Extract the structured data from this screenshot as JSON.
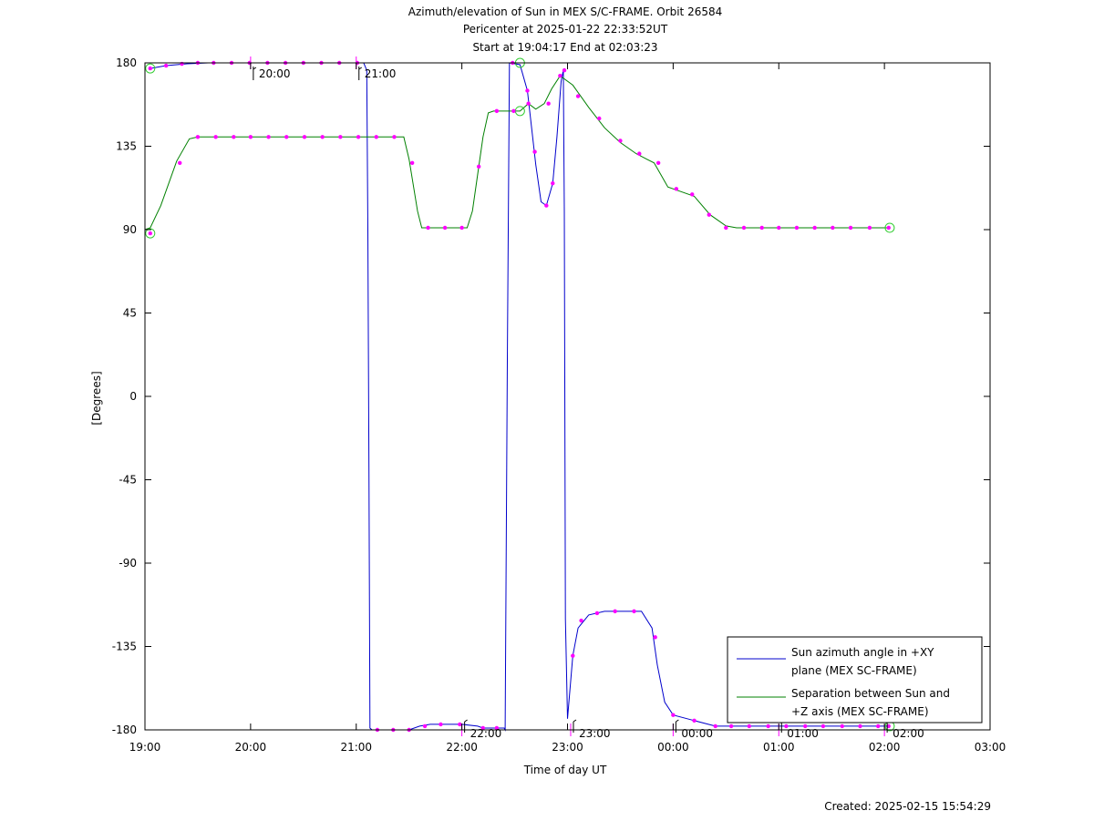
{
  "chart_data": {
    "type": "line",
    "title": "Azimuth/elevation of Sun in MEX S/C-FRAME.  Orbit 26584",
    "subtitle_1": "Pericenter at 2025-01-22 22:33:52UT",
    "subtitle_2": "Start at 19:04:17 End at 02:03:23",
    "xlabel": "Time of day UT",
    "ylabel": "[Degrees]",
    "footer": "Created: 2025-02-15 15:54:29",
    "xlim": [
      19.0,
      27.0
    ],
    "ylim": [
      -180,
      180
    ],
    "x_ticks": [
      {
        "v": 19,
        "label": "19:00"
      },
      {
        "v": 20,
        "label": "20:00"
      },
      {
        "v": 21,
        "label": "21:00"
      },
      {
        "v": 22,
        "label": "22:00"
      },
      {
        "v": 23,
        "label": "23:00"
      },
      {
        "v": 24,
        "label": "00:00"
      },
      {
        "v": 25,
        "label": "01:00"
      },
      {
        "v": 26,
        "label": "02:00"
      },
      {
        "v": 27,
        "label": "03:00"
      }
    ],
    "y_ticks": [
      {
        "v": 180,
        "label": "180"
      },
      {
        "v": 135,
        "label": "135"
      },
      {
        "v": 90,
        "label": "90"
      },
      {
        "v": 45,
        "label": "45"
      },
      {
        "v": 0,
        "label": "0"
      },
      {
        "v": -45,
        "label": "-45"
      },
      {
        "v": -90,
        "label": "-90"
      },
      {
        "v": -135,
        "label": "-135"
      },
      {
        "v": -180,
        "label": "-180"
      }
    ],
    "hour_marks": [
      {
        "x": 20.0,
        "y": 180,
        "label": "20:00"
      },
      {
        "x": 21.0,
        "y": 180,
        "label": "21:00"
      },
      {
        "x": 22.0,
        "y": -180,
        "label": "22:00"
      },
      {
        "x": 23.03,
        "y": -180,
        "label": "23:00"
      },
      {
        "x": 24.0,
        "y": -180,
        "label": "00:00"
      },
      {
        "x": 25.0,
        "y": -180,
        "label": "01:00"
      },
      {
        "x": 26.0,
        "y": -180,
        "label": "02:00"
      }
    ],
    "series": [
      {
        "name": "Sun azimuth angle in +XY plane (MEX SC-FRAME)",
        "legend_lines": [
          "Sun azimuth angle in +XY",
          "plane (MEX SC-FRAME)"
        ],
        "color": "#0000cc",
        "points": [
          [
            19.05,
            177
          ],
          [
            19.2,
            178.5
          ],
          [
            19.4,
            179.5
          ],
          [
            19.6,
            180
          ],
          [
            21.07,
            180
          ],
          [
            21.1,
            176
          ],
          [
            21.11,
            90
          ],
          [
            21.12,
            -40
          ],
          [
            21.13,
            -179
          ],
          [
            21.15,
            -180
          ],
          [
            21.5,
            -180
          ],
          [
            21.6,
            -178
          ],
          [
            21.7,
            -177
          ],
          [
            22.0,
            -177
          ],
          [
            22.15,
            -178
          ],
          [
            22.2,
            -179
          ],
          [
            22.4,
            -179
          ],
          [
            22.41,
            -180
          ],
          [
            22.43,
            20
          ],
          [
            22.45,
            180
          ],
          [
            22.55,
            179
          ],
          [
            22.62,
            165
          ],
          [
            22.7,
            125
          ],
          [
            22.75,
            105
          ],
          [
            22.8,
            103
          ],
          [
            22.86,
            115
          ],
          [
            22.9,
            140
          ],
          [
            22.94,
            170
          ],
          [
            22.96,
            176
          ],
          [
            22.97,
            100
          ],
          [
            22.98,
            -120
          ],
          [
            23.0,
            -174
          ],
          [
            23.05,
            -140
          ],
          [
            23.1,
            -125
          ],
          [
            23.2,
            -118
          ],
          [
            23.35,
            -116
          ],
          [
            23.7,
            -116
          ],
          [
            23.8,
            -125
          ],
          [
            23.85,
            -145
          ],
          [
            23.92,
            -165
          ],
          [
            24.0,
            -172
          ],
          [
            24.2,
            -175
          ],
          [
            24.4,
            -178
          ],
          [
            26.05,
            -178
          ]
        ]
      },
      {
        "name": "Separation between Sun and +Z axis (MEX SC-FRAME)",
        "legend_lines": [
          "Separation between Sun and",
          "+Z axis (MEX SC-FRAME)"
        ],
        "color": "#008000",
        "points": [
          [
            19.0,
            90
          ],
          [
            19.05,
            91
          ],
          [
            19.15,
            103
          ],
          [
            19.3,
            127
          ],
          [
            19.42,
            139
          ],
          [
            19.5,
            140
          ],
          [
            21.3,
            140
          ],
          [
            21.45,
            140
          ],
          [
            21.5,
            128
          ],
          [
            21.58,
            100
          ],
          [
            21.62,
            91
          ],
          [
            22.05,
            91
          ],
          [
            22.1,
            100
          ],
          [
            22.15,
            120
          ],
          [
            22.2,
            140
          ],
          [
            22.25,
            153
          ],
          [
            22.3,
            154
          ],
          [
            22.45,
            154
          ],
          [
            22.55,
            154
          ],
          [
            22.63,
            158
          ],
          [
            22.7,
            155
          ],
          [
            22.78,
            158
          ],
          [
            22.85,
            166
          ],
          [
            22.93,
            173
          ],
          [
            23.05,
            168
          ],
          [
            23.2,
            156
          ],
          [
            23.35,
            145
          ],
          [
            23.5,
            137
          ],
          [
            23.65,
            131
          ],
          [
            23.75,
            128
          ],
          [
            23.82,
            126
          ],
          [
            23.88,
            120
          ],
          [
            23.95,
            113
          ],
          [
            24.05,
            111
          ],
          [
            24.2,
            108
          ],
          [
            24.35,
            98
          ],
          [
            24.5,
            92
          ],
          [
            24.6,
            91
          ],
          [
            26.05,
            91
          ]
        ]
      }
    ],
    "azimuth_dots": [
      [
        19.05,
        177
      ],
      [
        19.2,
        178.5
      ],
      [
        19.35,
        179.5
      ],
      [
        19.5,
        180
      ],
      [
        19.65,
        180
      ],
      [
        19.82,
        180
      ],
      [
        19.99,
        180
      ],
      [
        20.16,
        180
      ],
      [
        20.33,
        180
      ],
      [
        20.5,
        180
      ],
      [
        20.67,
        180
      ],
      [
        20.84,
        180
      ],
      [
        21.01,
        180
      ],
      [
        21.2,
        -180
      ],
      [
        21.35,
        -180
      ],
      [
        21.5,
        -180
      ],
      [
        21.65,
        -178
      ],
      [
        21.8,
        -177
      ],
      [
        21.98,
        -177
      ],
      [
        22.2,
        -179
      ],
      [
        22.33,
        -179
      ],
      [
        22.48,
        180
      ],
      [
        22.62,
        165
      ],
      [
        22.69,
        132
      ],
      [
        22.8,
        103
      ],
      [
        22.86,
        115
      ],
      [
        22.97,
        176
      ],
      [
        23.05,
        -140
      ],
      [
        23.13,
        -121
      ],
      [
        23.28,
        -117
      ],
      [
        23.45,
        -116
      ],
      [
        23.63,
        -116
      ],
      [
        23.83,
        -130
      ],
      [
        24.0,
        -172
      ],
      [
        24.2,
        -175
      ],
      [
        24.4,
        -178
      ],
      [
        24.55,
        -178
      ],
      [
        24.72,
        -178
      ],
      [
        24.9,
        -178
      ],
      [
        25.07,
        -178
      ],
      [
        25.25,
        -178
      ],
      [
        25.42,
        -178
      ],
      [
        25.6,
        -178
      ],
      [
        25.77,
        -178
      ],
      [
        25.94,
        -178
      ],
      [
        26.04,
        -178
      ]
    ],
    "separation_dots": [
      [
        19.05,
        88
      ],
      [
        19.33,
        126
      ],
      [
        19.5,
        140
      ],
      [
        19.67,
        140
      ],
      [
        19.84,
        140
      ],
      [
        20.0,
        140
      ],
      [
        20.17,
        140
      ],
      [
        20.34,
        140
      ],
      [
        20.51,
        140
      ],
      [
        20.68,
        140
      ],
      [
        20.85,
        140
      ],
      [
        21.02,
        140
      ],
      [
        21.19,
        140
      ],
      [
        21.36,
        140
      ],
      [
        21.53,
        126
      ],
      [
        21.68,
        91
      ],
      [
        21.84,
        91
      ],
      [
        22.0,
        91
      ],
      [
        22.16,
        124
      ],
      [
        22.33,
        154
      ],
      [
        22.49,
        154
      ],
      [
        22.63,
        158
      ],
      [
        22.82,
        158
      ],
      [
        22.93,
        173
      ],
      [
        23.1,
        162
      ],
      [
        23.3,
        150
      ],
      [
        23.5,
        138
      ],
      [
        23.68,
        131
      ],
      [
        23.86,
        126
      ],
      [
        24.03,
        112
      ],
      [
        24.18,
        109
      ],
      [
        24.34,
        98
      ],
      [
        24.5,
        91
      ],
      [
        24.67,
        91
      ],
      [
        24.84,
        91
      ],
      [
        25.0,
        91
      ],
      [
        25.17,
        91
      ],
      [
        25.34,
        91
      ],
      [
        25.51,
        91
      ],
      [
        25.68,
        91
      ],
      [
        25.86,
        91
      ],
      [
        26.04,
        91
      ]
    ],
    "start_end_circles": [
      [
        19.05,
        177
      ],
      [
        19.05,
        88
      ],
      [
        22.55,
        180
      ],
      [
        22.55,
        154
      ],
      [
        26.05,
        91
      ],
      [
        26.05,
        -178
      ]
    ],
    "legend_position": "bottom-right",
    "grid": false
  }
}
